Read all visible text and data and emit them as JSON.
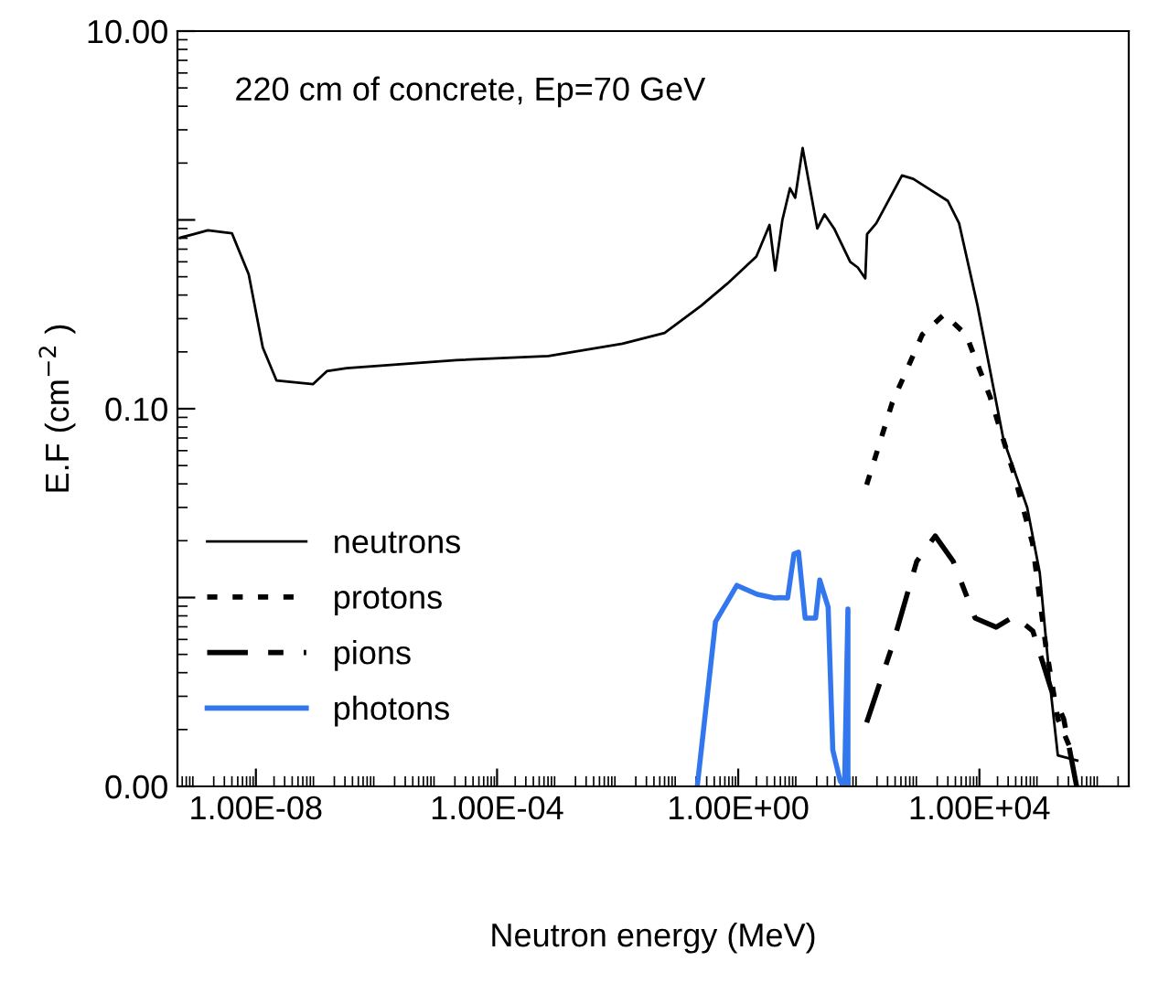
{
  "chart_data": {
    "type": "line",
    "xlabel": "Neutron energy (MeV)",
    "ylabel": "E.F (cm$^{−2}$ )",
    "annotations": [
      "220 cm of concrete, Ep=70 GeV"
    ],
    "log": "xy",
    "grid": false,
    "legend": "left",
    "marker": "none",
    "xlim": [
      5e-10,
      3000000.0
    ],
    "xticks": [
      {
        "value": 1e-08,
        "label": "1.00E-08"
      },
      {
        "value": 0.0001,
        "label": "1.00E-04"
      },
      {
        "value": 1,
        "label": "1.00E+00"
      },
      {
        "value": 10000.0,
        "label": "1.00E+04"
      }
    ],
    "ylim": [
      0.001,
      10
    ],
    "yticks": [
      {
        "value": 0.001,
        "label": "0.00"
      },
      {
        "value": 0.01,
        "label": null
      },
      {
        "value": 0.1,
        "label": "0.10"
      },
      {
        "value": 1,
        "label": null
      },
      {
        "value": 10,
        "label": "10.00"
      }
    ],
    "series": [
      {
        "name": "neutrons",
        "color": "#000000",
        "line_style": "solid",
        "x": [
          5.6e-10,
          1.6e-09,
          4e-09,
          7.6e-09,
          1.3e-08,
          2.2e-08,
          8.9e-08,
          1.5e-07,
          3.2e-07,
          2.1e-05,
          0.00071,
          0.012,
          0.06,
          0.245,
          0.66,
          2.0,
          3.3,
          4.1,
          5.4,
          7.2,
          8.8,
          11.7,
          15.5,
          20.5,
          27,
          39,
          72,
          96,
          128,
          137,
          195,
          520,
          800,
          3000,
          4600,
          9300,
          25000,
          62000,
          100000,
          155000,
          200000,
          420000
        ],
        "values": [
          0.805,
          0.88,
          0.85,
          0.515,
          0.211,
          0.141,
          0.135,
          0.158,
          0.164,
          0.181,
          0.19,
          0.221,
          0.252,
          0.352,
          0.46,
          0.64,
          0.94,
          0.54,
          1.0,
          1.47,
          1.31,
          2.4,
          1.47,
          0.9,
          1.07,
          0.9,
          0.6,
          0.56,
          0.49,
          0.84,
          0.96,
          1.72,
          1.65,
          1.26,
          0.96,
          0.352,
          0.069,
          0.03,
          0.0136,
          0.00305,
          0.00146,
          0.00137
        ]
      },
      {
        "name": "protons",
        "color": "#000000",
        "line_style": "dotted",
        "x": [
          135,
          360,
          1130,
          2600,
          6000,
          15000,
          38000,
          76000,
          126000,
          200000,
          380000
        ],
        "values": [
          0.0396,
          0.108,
          0.247,
          0.316,
          0.247,
          0.116,
          0.0444,
          0.0194,
          0.00557,
          0.00228,
          0.0014
        ]
      },
      {
        "name": "pions",
        "color": "#000000",
        "line_style": "dashdot",
        "x": [
          135,
          360,
          910,
          1850,
          3700,
          8500,
          19000,
          38000,
          77000,
          155000,
          250000,
          410000
        ],
        "values": [
          0.00218,
          0.00557,
          0.0155,
          0.0212,
          0.0155,
          0.00778,
          0.00697,
          0.00796,
          0.00665,
          0.00326,
          0.00228,
          0.001
        ]
      },
      {
        "name": "photons",
        "color": "#3377ee",
        "line_style": "solid",
        "x": [
          0.209,
          0.42,
          0.95,
          2.07,
          4.0,
          5.0,
          6.6,
          8.4,
          10,
          12.9,
          19.2,
          22.5,
          31,
          37,
          49,
          58,
          66,
          66
        ],
        "values": [
          0.001,
          0.00745,
          0.0116,
          0.0104,
          0.00995,
          0.01,
          0.00995,
          0.017,
          0.0174,
          0.00778,
          0.00778,
          0.0124,
          0.0089,
          0.00156,
          0.00107,
          0.001,
          0.0087,
          0.001
        ]
      }
    ]
  }
}
